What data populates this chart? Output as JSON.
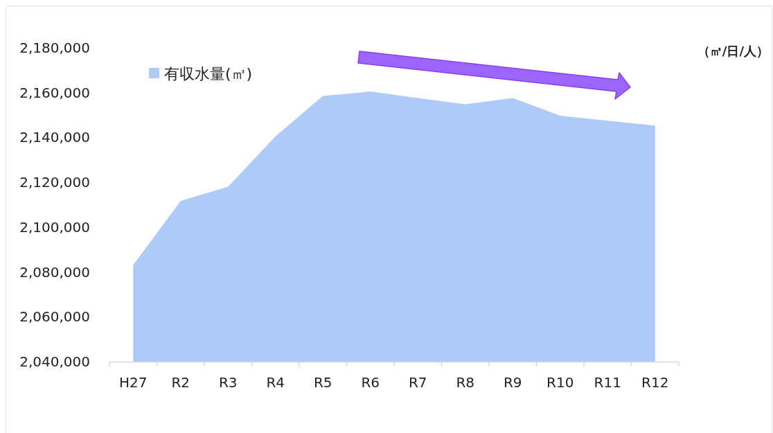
{
  "chart_data": {
    "type": "area",
    "ylabel": "（㎥/日/人）",
    "legend": "top left",
    "categories": [
      "H27",
      "R2",
      "R3",
      "R4",
      "R5",
      "R6",
      "R7",
      "R8",
      "R9",
      "R10",
      "R11",
      "R12"
    ],
    "series": [
      {
        "name": "有収水量(㎥)",
        "color": "#aecbf8",
        "values": [
          2083000,
          2111700,
          2118000,
          2140500,
          2158500,
          2160500,
          2157600,
          2154800,
          2157600,
          2149700,
          2147500,
          2145300
        ]
      }
    ],
    "ylim": [
      2040000,
      2180000
    ],
    "yticks": [
      {
        "value": 2040000,
        "label": "2,040,000"
      },
      {
        "value": 2060000,
        "label": "2,060,000"
      },
      {
        "value": 2080000,
        "label": "2,080,000"
      },
      {
        "value": 2100000,
        "label": "2,100,000"
      },
      {
        "value": 2120000,
        "label": "2,120,000"
      },
      {
        "value": 2140000,
        "label": "2,140,000"
      },
      {
        "value": 2160000,
        "label": "2,160,000"
      },
      {
        "value": 2180000,
        "label": "2,180,000"
      }
    ]
  }
}
